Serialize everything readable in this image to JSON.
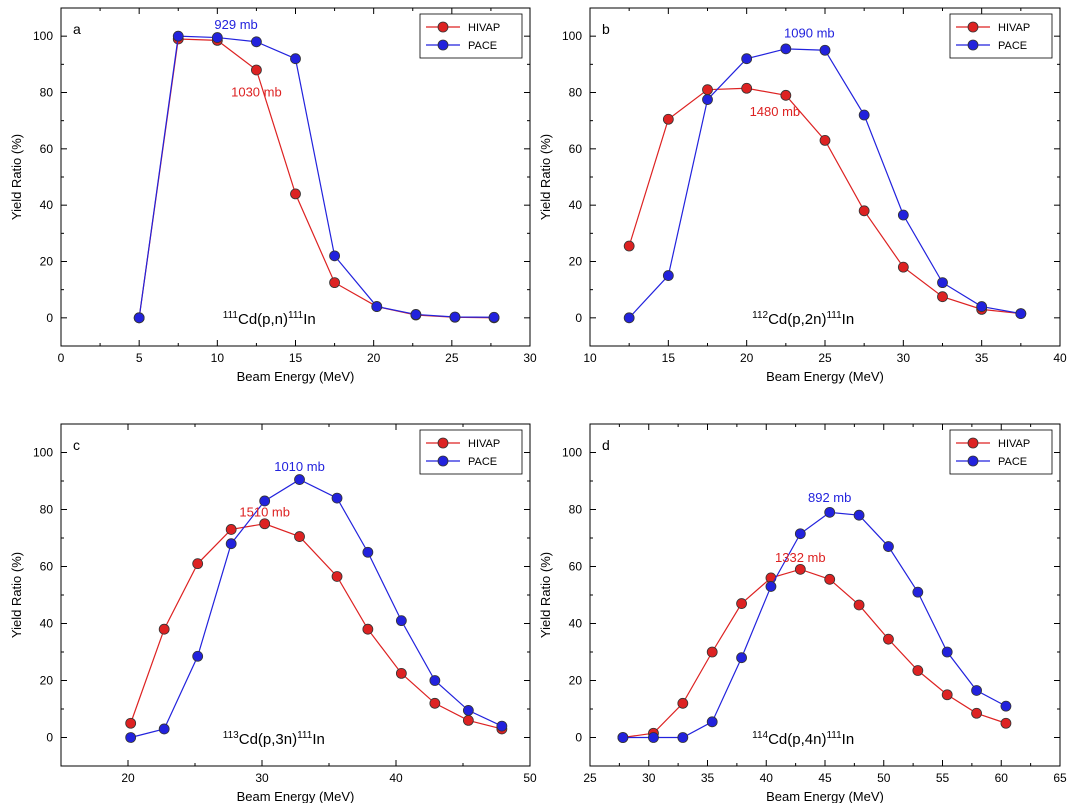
{
  "chart_data": [
    {
      "type": "line",
      "panel": "a",
      "xlabel": "Beam Energy (MeV)",
      "ylabel": "Yield Ratio (%)",
      "xlim": [
        0,
        30
      ],
      "ylim": [
        -10,
        110
      ],
      "xticks": [
        0,
        5,
        10,
        15,
        20,
        25,
        30
      ],
      "yticks": [
        0,
        20,
        40,
        60,
        80,
        100
      ],
      "reaction": {
        "a": "111",
        "b": "Cd(p,n)",
        "c": "111",
        "d": "In"
      },
      "series": [
        {
          "name": "HIVAP",
          "color": "#dd2222",
          "x": [
            5,
            7.5,
            10,
            12.5,
            15,
            17.5,
            20.2,
            22.7,
            25.2,
            27.7
          ],
          "y": [
            0,
            99,
            98.5,
            88,
            44,
            12.5,
            4,
            1,
            0.2,
            0
          ]
        },
        {
          "name": "PACE",
          "color": "#2222dd",
          "x": [
            5,
            7.5,
            10,
            12.5,
            15,
            17.5,
            20.2,
            22.7,
            25.2,
            27.7
          ],
          "y": [
            0,
            100,
            99.5,
            98,
            92,
            22,
            4,
            1.2,
            0.3,
            0.2
          ]
        }
      ],
      "annotations": [
        {
          "text": "929 mb",
          "color": "#2222dd",
          "x": 11.2,
          "y": 104
        },
        {
          "text": "1030 mb",
          "color": "#dd2222",
          "x": 12.5,
          "y": 80
        }
      ]
    },
    {
      "type": "line",
      "panel": "b",
      "xlabel": "Beam Energy (MeV)",
      "ylabel": "Yield Ratio (%)",
      "xlim": [
        10,
        40
      ],
      "ylim": [
        -10,
        110
      ],
      "xticks": [
        10,
        15,
        20,
        25,
        30,
        35,
        40
      ],
      "yticks": [
        0,
        20,
        40,
        60,
        80,
        100
      ],
      "reaction": {
        "a": "112",
        "b": "Cd(p,2n)",
        "c": "111",
        "d": "In"
      },
      "series": [
        {
          "name": "HIVAP",
          "color": "#dd2222",
          "x": [
            12.5,
            15,
            17.5,
            20,
            22.5,
            25,
            27.5,
            30,
            32.5,
            35,
            37.5
          ],
          "y": [
            25.5,
            70.5,
            81,
            81.5,
            79,
            63,
            38,
            18,
            7.5,
            3,
            1.5
          ]
        },
        {
          "name": "PACE",
          "color": "#2222dd",
          "x": [
            12.5,
            15,
            17.5,
            20,
            22.5,
            25,
            27.5,
            30,
            32.5,
            35,
            37.5
          ],
          "y": [
            0,
            15,
            77.5,
            92,
            95.5,
            95,
            72,
            36.5,
            12.5,
            4,
            1.5
          ]
        }
      ],
      "annotations": [
        {
          "text": "1090 mb",
          "color": "#2222dd",
          "x": 24,
          "y": 101
        },
        {
          "text": "1480 mb",
          "color": "#dd2222",
          "x": 21.8,
          "y": 73
        }
      ]
    },
    {
      "type": "line",
      "panel": "c",
      "xlabel": "Beam Energy (MeV)",
      "ylabel": "Yield Ratio (%)",
      "xlim": [
        15,
        50
      ],
      "ylim": [
        -10,
        110
      ],
      "xticks": [
        20,
        30,
        40,
        50
      ],
      "yticks": [
        0,
        20,
        40,
        60,
        80,
        100
      ],
      "reaction": {
        "a": "113",
        "b": "Cd(p,3n)",
        "c": "111",
        "d": "In"
      },
      "series": [
        {
          "name": "HIVAP",
          "color": "#dd2222",
          "x": [
            20.2,
            22.7,
            25.2,
            27.7,
            30.2,
            32.8,
            35.6,
            37.9,
            40.4,
            42.9,
            45.4,
            47.9
          ],
          "y": [
            5,
            38,
            61,
            73,
            75,
            70.5,
            56.5,
            38,
            22.5,
            12,
            6,
            3
          ]
        },
        {
          "name": "PACE",
          "color": "#2222dd",
          "x": [
            20.2,
            22.7,
            25.2,
            27.7,
            30.2,
            32.8,
            35.6,
            37.9,
            40.4,
            42.9,
            45.4,
            47.9
          ],
          "y": [
            0,
            3,
            28.5,
            68,
            83,
            90.5,
            84,
            65,
            41,
            20,
            9.5,
            4
          ]
        }
      ],
      "annotations": [
        {
          "text": "1010 mb",
          "color": "#2222dd",
          "x": 32.8,
          "y": 95
        },
        {
          "text": "1510 mb",
          "color": "#dd2222",
          "x": 30.2,
          "y": 79
        }
      ]
    },
    {
      "type": "line",
      "panel": "d",
      "xlabel": "Beam Energy (MeV)",
      "ylabel": "Yield Ratio (%)",
      "xlim": [
        25,
        65
      ],
      "ylim": [
        -10,
        110
      ],
      "xticks": [
        25,
        30,
        35,
        40,
        45,
        50,
        55,
        60,
        65
      ],
      "yticks": [
        0,
        20,
        40,
        60,
        80,
        100
      ],
      "reaction": {
        "a": "114",
        "b": "Cd(p,4n)",
        "c": "111",
        "d": "In"
      },
      "series": [
        {
          "name": "HIVAP",
          "color": "#dd2222",
          "x": [
            27.8,
            30.4,
            32.9,
            35.4,
            37.9,
            40.4,
            42.9,
            45.4,
            47.9,
            50.4,
            52.9,
            55.4,
            57.9,
            60.4
          ],
          "y": [
            0,
            1.5,
            12,
            30,
            47,
            56,
            59,
            55.5,
            46.5,
            34.5,
            23.5,
            15,
            8.5,
            5
          ]
        },
        {
          "name": "PACE",
          "color": "#2222dd",
          "x": [
            27.8,
            30.4,
            32.9,
            35.4,
            37.9,
            40.4,
            42.9,
            45.4,
            47.9,
            50.4,
            52.9,
            55.4,
            57.9,
            60.4
          ],
          "y": [
            0,
            0,
            0,
            5.5,
            28,
            53,
            71.5,
            79,
            78,
            67,
            51,
            30,
            16.5,
            11
          ]
        }
      ],
      "annotations": [
        {
          "text": "892 mb",
          "color": "#2222dd",
          "x": 45.4,
          "y": 84
        },
        {
          "text": "1332 mb",
          "color": "#dd2222",
          "x": 42.9,
          "y": 63
        }
      ]
    }
  ]
}
